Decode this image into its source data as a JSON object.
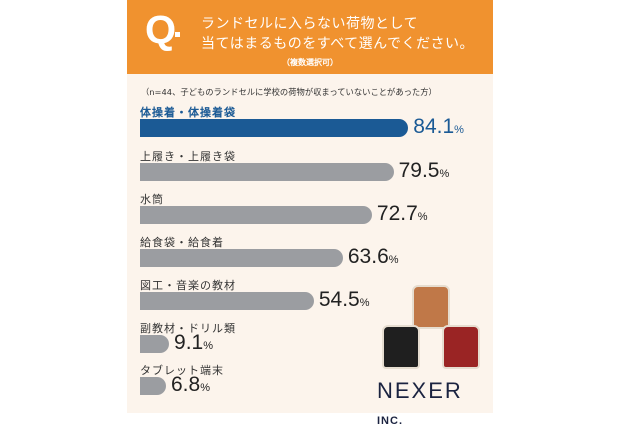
{
  "header": {
    "q": "Q",
    "line1": "ランドセルに入らない荷物として",
    "line2": "当てはまるものをすべて選んでください。",
    "sub": "（複数選択可）"
  },
  "note": "（n=44、子どものランドセルに学校の荷物が収まっていないことがあった方）",
  "logo": {
    "name": "NEXER",
    "suffix": "INC."
  },
  "colors": {
    "header": "#f0922f",
    "highlight": "#1b5a95",
    "bar": "#9b9da1",
    "background": "#fcf4ec"
  },
  "chart_data": {
    "type": "bar",
    "orientation": "horizontal",
    "unit": "%",
    "categories": [
      "体操着・体操着袋",
      "上履き・上履き袋",
      "水筒",
      "給食袋・給食着",
      "図工・音楽の教材",
      "副教材・ドリル類",
      "タブレット端末"
    ],
    "values": [
      84.1,
      79.5,
      72.7,
      63.6,
      54.5,
      9.1,
      6.8
    ],
    "labels": [
      "84.1",
      "79.5",
      "72.7",
      "63.6",
      "54.5",
      "9.1",
      "6.8"
    ],
    "highlight_index": 0
  }
}
